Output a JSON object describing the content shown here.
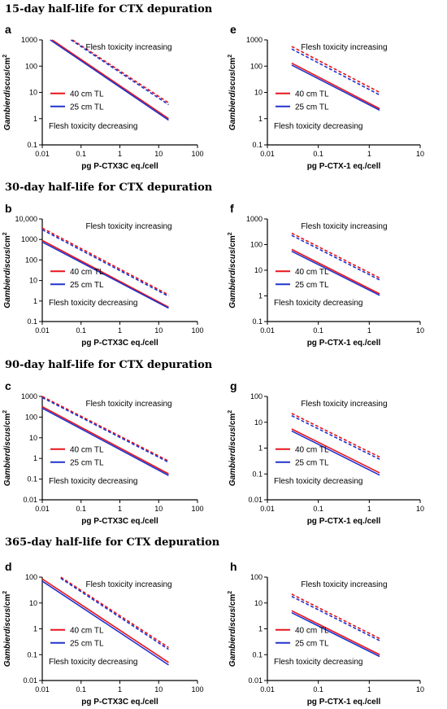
{
  "rows": [
    {
      "title": "15-day half-life for CTX depuration"
    },
    {
      "title": "30-day half-life for CTX depuration"
    },
    {
      "title": "90-day half-life for CTX depuration"
    },
    {
      "title": "365-day half-life for CTX depuration"
    }
  ],
  "colors": {
    "red": "#e8141b",
    "blue": "#2233cc",
    "axis": "#000000"
  },
  "chart_data": [
    {
      "panel": "a",
      "type": "line",
      "xscale": "log",
      "yscale": "log",
      "xlim": [
        0.01,
        100
      ],
      "ylim": [
        0.1,
        1000
      ],
      "xticks": [
        "0.01",
        "0.1",
        "1",
        "10",
        "100"
      ],
      "yticks": [
        "0.1",
        "1",
        "10",
        "100",
        "1000"
      ],
      "xlabel": "pg P-CTX3C eq./cell",
      "ylabel_main": "Gambierdiscus",
      "ylabel_unit": "/cm",
      "ylabel_sup": "2",
      "annotation_increasing": "Flesh toxicity increasing",
      "annotation_decreasing": "Flesh toxicity decreasing",
      "legend": [
        "40 cm TL",
        "25 cm TL"
      ],
      "series": [
        {
          "name": "40 cm TL",
          "style": "solid",
          "color": "red",
          "x": [
            0.018,
            18
          ],
          "y": [
            1000,
            1.0
          ]
        },
        {
          "name": "25 cm TL",
          "style": "solid",
          "color": "blue",
          "x": [
            0.016,
            18
          ],
          "y": [
            1000,
            0.88
          ]
        },
        {
          "name": "40 cm TL",
          "style": "dashed",
          "color": "red",
          "x": [
            0.06,
            18
          ],
          "y": [
            1000,
            4.0
          ]
        },
        {
          "name": "25 cm TL",
          "style": "dashed",
          "color": "blue",
          "x": [
            0.055,
            18
          ],
          "y": [
            1000,
            3.4
          ]
        }
      ]
    },
    {
      "panel": "e",
      "type": "line",
      "xscale": "log",
      "yscale": "log",
      "xlim": [
        0.01,
        10
      ],
      "ylim": [
        0.1,
        1000
      ],
      "xticks": [
        "0.01",
        "0.1",
        "1",
        "10"
      ],
      "yticks": [
        "0.1",
        "1",
        "10",
        "100",
        "1000"
      ],
      "xlabel": "pg P-CTX-1 eq./cell",
      "ylabel_main": "Gambierdiscus",
      "ylabel_unit": "/cm",
      "ylabel_sup": "2",
      "annotation_increasing": "Flesh toxicity increasing",
      "annotation_decreasing": "Flesh toxicity decreasing",
      "legend": [
        "40 cm TL",
        "25 cm TL"
      ],
      "series": [
        {
          "name": "40 cm TL",
          "style": "solid",
          "color": "red",
          "x": [
            0.03,
            1.6
          ],
          "y": [
            130,
            2.4
          ]
        },
        {
          "name": "25 cm TL",
          "style": "solid",
          "color": "blue",
          "x": [
            0.03,
            1.6
          ],
          "y": [
            110,
            2.1
          ]
        },
        {
          "name": "40 cm TL",
          "style": "dashed",
          "color": "red",
          "x": [
            0.03,
            1.6
          ],
          "y": [
            560,
            10
          ]
        },
        {
          "name": "25 cm TL",
          "style": "dashed",
          "color": "blue",
          "x": [
            0.03,
            1.6
          ],
          "y": [
            450,
            8
          ]
        }
      ]
    },
    {
      "panel": "b",
      "type": "line",
      "xscale": "log",
      "yscale": "log",
      "xlim": [
        0.01,
        100
      ],
      "ylim": [
        0.1,
        10000
      ],
      "xticks": [
        "0.01",
        "0.1",
        "1",
        "10",
        "100"
      ],
      "yticks": [
        "0.1",
        "1",
        "10",
        "100",
        "1000",
        "10,000"
      ],
      "xlabel": "pg P-CTX3C eq./cell",
      "ylabel_main": "Gambierdiscus",
      "ylabel_unit": "/cm",
      "ylabel_sup": "2",
      "annotation_increasing": "Flesh toxicity increasing",
      "annotation_decreasing": "Flesh toxicity decreasing",
      "legend": [
        "40 cm TL",
        "25 cm TL"
      ],
      "series": [
        {
          "name": "40 cm TL",
          "style": "solid",
          "color": "red",
          "x": [
            0.01,
            18
          ],
          "y": [
            900,
            0.5
          ]
        },
        {
          "name": "25 cm TL",
          "style": "solid",
          "color": "blue",
          "x": [
            0.01,
            18
          ],
          "y": [
            750,
            0.45
          ]
        },
        {
          "name": "40 cm TL",
          "style": "dashed",
          "color": "red",
          "x": [
            0.01,
            18
          ],
          "y": [
            3600,
            2.0
          ]
        },
        {
          "name": "25 cm TL",
          "style": "dashed",
          "color": "blue",
          "x": [
            0.01,
            18
          ],
          "y": [
            3000,
            1.7
          ]
        }
      ]
    },
    {
      "panel": "f",
      "type": "line",
      "xscale": "log",
      "yscale": "log",
      "xlim": [
        0.01,
        10
      ],
      "ylim": [
        0.1,
        1000
      ],
      "xticks": [
        "0.01",
        "0.1",
        "1",
        "10"
      ],
      "yticks": [
        "0.1",
        "1",
        "10",
        "100",
        "1000"
      ],
      "xlabel": "pg P-CTX-1 eq./cell",
      "ylabel_main": "Gambierdiscus",
      "ylabel_unit": "/cm",
      "ylabel_sup": "2",
      "annotation_increasing": "Flesh toxicity increasing",
      "annotation_decreasing": "Flesh toxicity decreasing",
      "legend": [
        "40 cm TL",
        "25 cm TL"
      ],
      "series": [
        {
          "name": "40 cm TL",
          "style": "solid",
          "color": "red",
          "x": [
            0.03,
            1.6
          ],
          "y": [
            65,
            1.2
          ]
        },
        {
          "name": "25 cm TL",
          "style": "solid",
          "color": "blue",
          "x": [
            0.03,
            1.6
          ],
          "y": [
            55,
            1.05
          ]
        },
        {
          "name": "40 cm TL",
          "style": "dashed",
          "color": "red",
          "x": [
            0.03,
            1.6
          ],
          "y": [
            280,
            5.0
          ]
        },
        {
          "name": "25 cm TL",
          "style": "dashed",
          "color": "blue",
          "x": [
            0.03,
            1.6
          ],
          "y": [
            230,
            4.2
          ]
        }
      ]
    },
    {
      "panel": "c",
      "type": "line",
      "xscale": "log",
      "yscale": "log",
      "xlim": [
        0.01,
        100
      ],
      "ylim": [
        0.01,
        1000
      ],
      "xticks": [
        "0.01",
        "0.1",
        "1",
        "10",
        "100"
      ],
      "yticks": [
        "0.01",
        "0.1",
        "1",
        "10",
        "100",
        "1000"
      ],
      "xlabel": "pg P-CTX3C eq./cell",
      "ylabel_main": "Gambierdiscus",
      "ylabel_unit": "/cm",
      "ylabel_sup": "2",
      "annotation_increasing": "Flesh toxicity increasing",
      "annotation_decreasing": "Flesh toxicity decreasing",
      "legend": [
        "40 cm TL",
        "25 cm TL"
      ],
      "series": [
        {
          "name": "40 cm TL",
          "style": "solid",
          "color": "red",
          "x": [
            0.01,
            18
          ],
          "y": [
            320,
            0.18
          ]
        },
        {
          "name": "25 cm TL",
          "style": "solid",
          "color": "blue",
          "x": [
            0.01,
            18
          ],
          "y": [
            270,
            0.15
          ]
        },
        {
          "name": "40 cm TL",
          "style": "dashed",
          "color": "red",
          "x": [
            0.01,
            18
          ],
          "y": [
            1000,
            0.75
          ]
        },
        {
          "name": "25 cm TL",
          "style": "dashed",
          "color": "blue",
          "x": [
            0.01,
            18
          ],
          "y": [
            880,
            0.65
          ]
        }
      ]
    },
    {
      "panel": "g",
      "type": "line",
      "xscale": "log",
      "yscale": "log",
      "xlim": [
        0.01,
        10
      ],
      "ylim": [
        0.01,
        100
      ],
      "xticks": [
        "0.01",
        "0.1",
        "1",
        "10"
      ],
      "yticks": [
        "0.01",
        "0.1",
        "1",
        "10",
        "100"
      ],
      "xlabel": "pg P-CTX-1 eq./cell",
      "ylabel_main": "Gambierdiscus",
      "ylabel_unit": "/cm",
      "ylabel_sup": "2",
      "annotation_increasing": "Flesh toxicity increasing",
      "annotation_decreasing": "Flesh toxicity decreasing",
      "legend": [
        "40 cm TL",
        "25 cm TL"
      ],
      "series": [
        {
          "name": "40 cm TL",
          "style": "solid",
          "color": "red",
          "x": [
            0.03,
            1.6
          ],
          "y": [
            5.5,
            0.11
          ]
        },
        {
          "name": "25 cm TL",
          "style": "solid",
          "color": "blue",
          "x": [
            0.03,
            1.6
          ],
          "y": [
            4.6,
            0.09
          ]
        },
        {
          "name": "40 cm TL",
          "style": "dashed",
          "color": "red",
          "x": [
            0.03,
            1.6
          ],
          "y": [
            22,
            0.45
          ]
        },
        {
          "name": "25 cm TL",
          "style": "dashed",
          "color": "blue",
          "x": [
            0.03,
            1.6
          ],
          "y": [
            18,
            0.37
          ]
        }
      ]
    },
    {
      "panel": "d",
      "type": "line",
      "xscale": "log",
      "yscale": "log",
      "xlim": [
        0.01,
        100
      ],
      "ylim": [
        0.01,
        100
      ],
      "xticks": [
        "0.01",
        "0.1",
        "1",
        "10",
        "100"
      ],
      "yticks": [
        "0.01",
        "0.1",
        "1",
        "10",
        "100"
      ],
      "xlabel": "pg P-CTX3C eq./cell",
      "ylabel_main": "Gambierdiscus",
      "ylabel_unit": "/cm",
      "ylabel_sup": "2",
      "annotation_increasing": "Flesh toxicity increasing",
      "annotation_decreasing": "Flesh toxicity decreasing",
      "legend": [
        "40 cm TL",
        "25 cm TL"
      ],
      "series": [
        {
          "name": "40 cm TL",
          "style": "solid",
          "color": "red",
          "x": [
            0.01,
            18
          ],
          "y": [
            85,
            0.05
          ]
        },
        {
          "name": "25 cm TL",
          "style": "solid",
          "color": "blue",
          "x": [
            0.01,
            18
          ],
          "y": [
            70,
            0.04
          ]
        },
        {
          "name": "40 cm TL",
          "style": "dashed",
          "color": "red",
          "x": [
            0.03,
            18
          ],
          "y": [
            100,
            0.19
          ]
        },
        {
          "name": "25 cm TL",
          "style": "dashed",
          "color": "blue",
          "x": [
            0.03,
            18
          ],
          "y": [
            90,
            0.16
          ]
        }
      ]
    },
    {
      "panel": "h",
      "type": "line",
      "xscale": "log",
      "yscale": "log",
      "xlim": [
        0.01,
        10
      ],
      "ylim": [
        0.01,
        100
      ],
      "xticks": [
        "0.01",
        "0.1",
        "1",
        "10"
      ],
      "yticks": [
        "0.01",
        "0.1",
        "1",
        "10",
        "100"
      ],
      "xlabel": "pg P-CTX-1 eq./cell",
      "ylabel_main": "Gambierdiscus",
      "ylabel_unit": "/cm",
      "ylabel_sup": "2",
      "annotation_increasing": "Flesh toxicity increasing",
      "annotation_decreasing": "Flesh toxicity decreasing",
      "legend": [
        "40 cm TL",
        "25 cm TL"
      ],
      "series": [
        {
          "name": "40 cm TL",
          "style": "solid",
          "color": "red",
          "x": [
            0.03,
            1.6
          ],
          "y": [
            5.0,
            0.1
          ]
        },
        {
          "name": "25 cm TL",
          "style": "solid",
          "color": "blue",
          "x": [
            0.03,
            1.6
          ],
          "y": [
            4.2,
            0.085
          ]
        },
        {
          "name": "40 cm TL",
          "style": "dashed",
          "color": "red",
          "x": [
            0.03,
            1.6
          ],
          "y": [
            22,
            0.42
          ]
        },
        {
          "name": "25 cm TL",
          "style": "dashed",
          "color": "blue",
          "x": [
            0.03,
            1.6
          ],
          "y": [
            18,
            0.35
          ]
        }
      ]
    }
  ]
}
